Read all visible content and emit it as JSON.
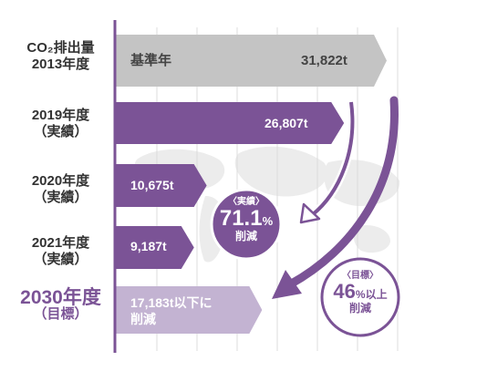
{
  "chart_data": {
    "type": "bar",
    "orientation": "horizontal",
    "unit": "t",
    "categories": [
      {
        "line1": "CO₂排出量",
        "line2": "2013年度"
      },
      {
        "line1": "2019年度",
        "line2": "（実績）"
      },
      {
        "line1": "2020年度",
        "line2": "（実績）"
      },
      {
        "line1": "2021年度",
        "line2": "（実績）"
      },
      {
        "line1": "2030年度",
        "line2": "（目標）"
      }
    ],
    "values": [
      31822,
      26807,
      10675,
      9187,
      17183
    ],
    "bar_labels": [
      "31,822t",
      "26,807t",
      "10,675t",
      "9,187t",
      "17,183t以下に"
    ],
    "base_label": "基準年",
    "target_label_line2": "削減",
    "colors": {
      "base": "#c4c4c4",
      "actual": "#7b5396",
      "target": "#c3b3d2",
      "accent": "#7b5396"
    },
    "annotations": [
      {
        "line1": "〈実績〉",
        "value": "71.1",
        "suffix": "%",
        "line3": "削減"
      },
      {
        "line1": "〈目標〉",
        "value": "46",
        "suffix": "%以上",
        "line3": "削減"
      }
    ],
    "grid": true
  }
}
